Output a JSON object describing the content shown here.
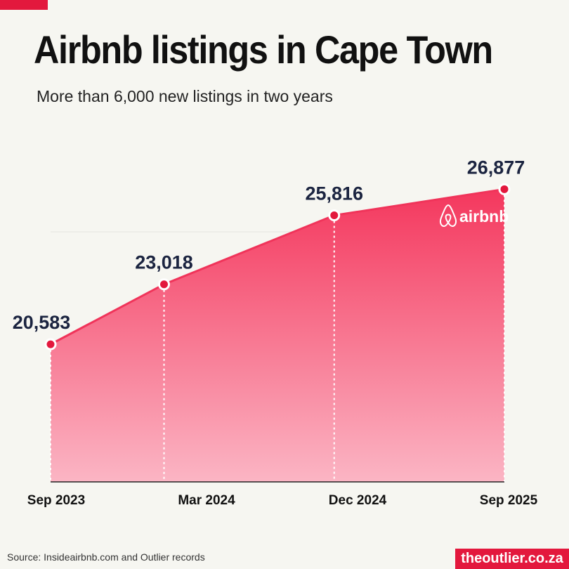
{
  "title": "Airbnb listings in Cape Town",
  "subtitle": "More than 6,000 new listings in two years",
  "source": "Source: Insideairbnb.com and Outlier records",
  "brand": "theoutlier.co.za",
  "logo": {
    "icon": "airbnb-logo-icon",
    "text": "airbnb"
  },
  "colors": {
    "accent": "#e3183d",
    "line": "#f0345a",
    "label": "#1b2440",
    "background": "#f6f6f1"
  },
  "chart_data": {
    "type": "area",
    "title": "Airbnb listings in Cape Town",
    "subtitle": "More than 6,000 new listings in two years",
    "xlabel": "",
    "ylabel": "",
    "x": [
      "Sep 2023",
      "Mar 2024",
      "Dec 2024",
      "Sep 2025"
    ],
    "x_months": [
      0,
      6,
      15,
      24
    ],
    "series": [
      {
        "values": [
          20583,
          23018,
          25816,
          26877
        ],
        "labels": [
          "20,583",
          "23,018",
          "25,816",
          "26,877"
        ]
      }
    ],
    "ylim": [
      15000,
      27000
    ],
    "grid": false,
    "legend": "none"
  }
}
